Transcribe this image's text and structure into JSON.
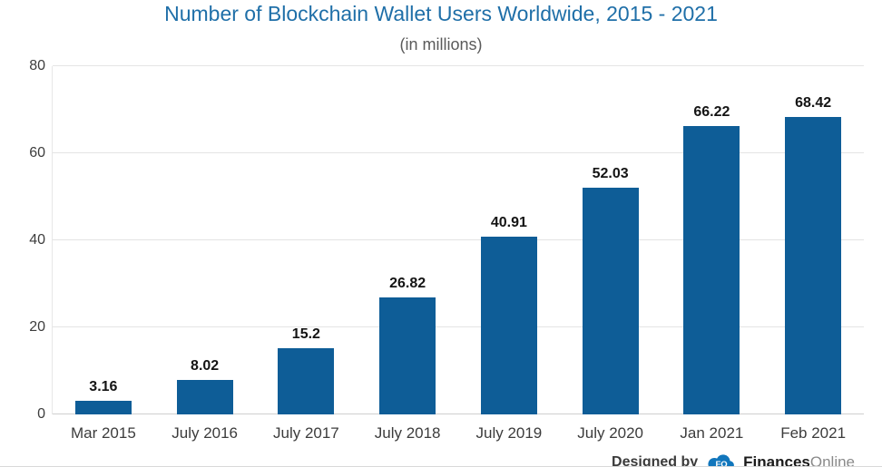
{
  "chart_data": {
    "type": "bar",
    "title": "Number of Blockchain Wallet Users Worldwide, 2015 - 2021",
    "subtitle": "(in millions)",
    "categories": [
      "Mar 2015",
      "July 2016",
      "July 2017",
      "July 2018",
      "July 2019",
      "July 2020",
      "Jan 2021",
      "Feb 2021"
    ],
    "values": [
      "3.16",
      "8.02",
      "15.2",
      "26.82",
      "40.91",
      "52.03",
      "66.22",
      "68.42"
    ],
    "xlabel": "",
    "ylabel": "",
    "ylim": [
      0,
      80
    ],
    "yticks": [
      0,
      20,
      40,
      60,
      80
    ],
    "grid": true,
    "legend": "none",
    "bar_color": "#0e5d97",
    "title_color": "#1f6fa8"
  },
  "footer": {
    "designed_by": "Designed by",
    "logo": "financesonline-cloud-icon",
    "logo_monogram": "FO",
    "brand_bold": "Finances",
    "brand_light": "Online",
    "logo_color": "#1176bc"
  }
}
